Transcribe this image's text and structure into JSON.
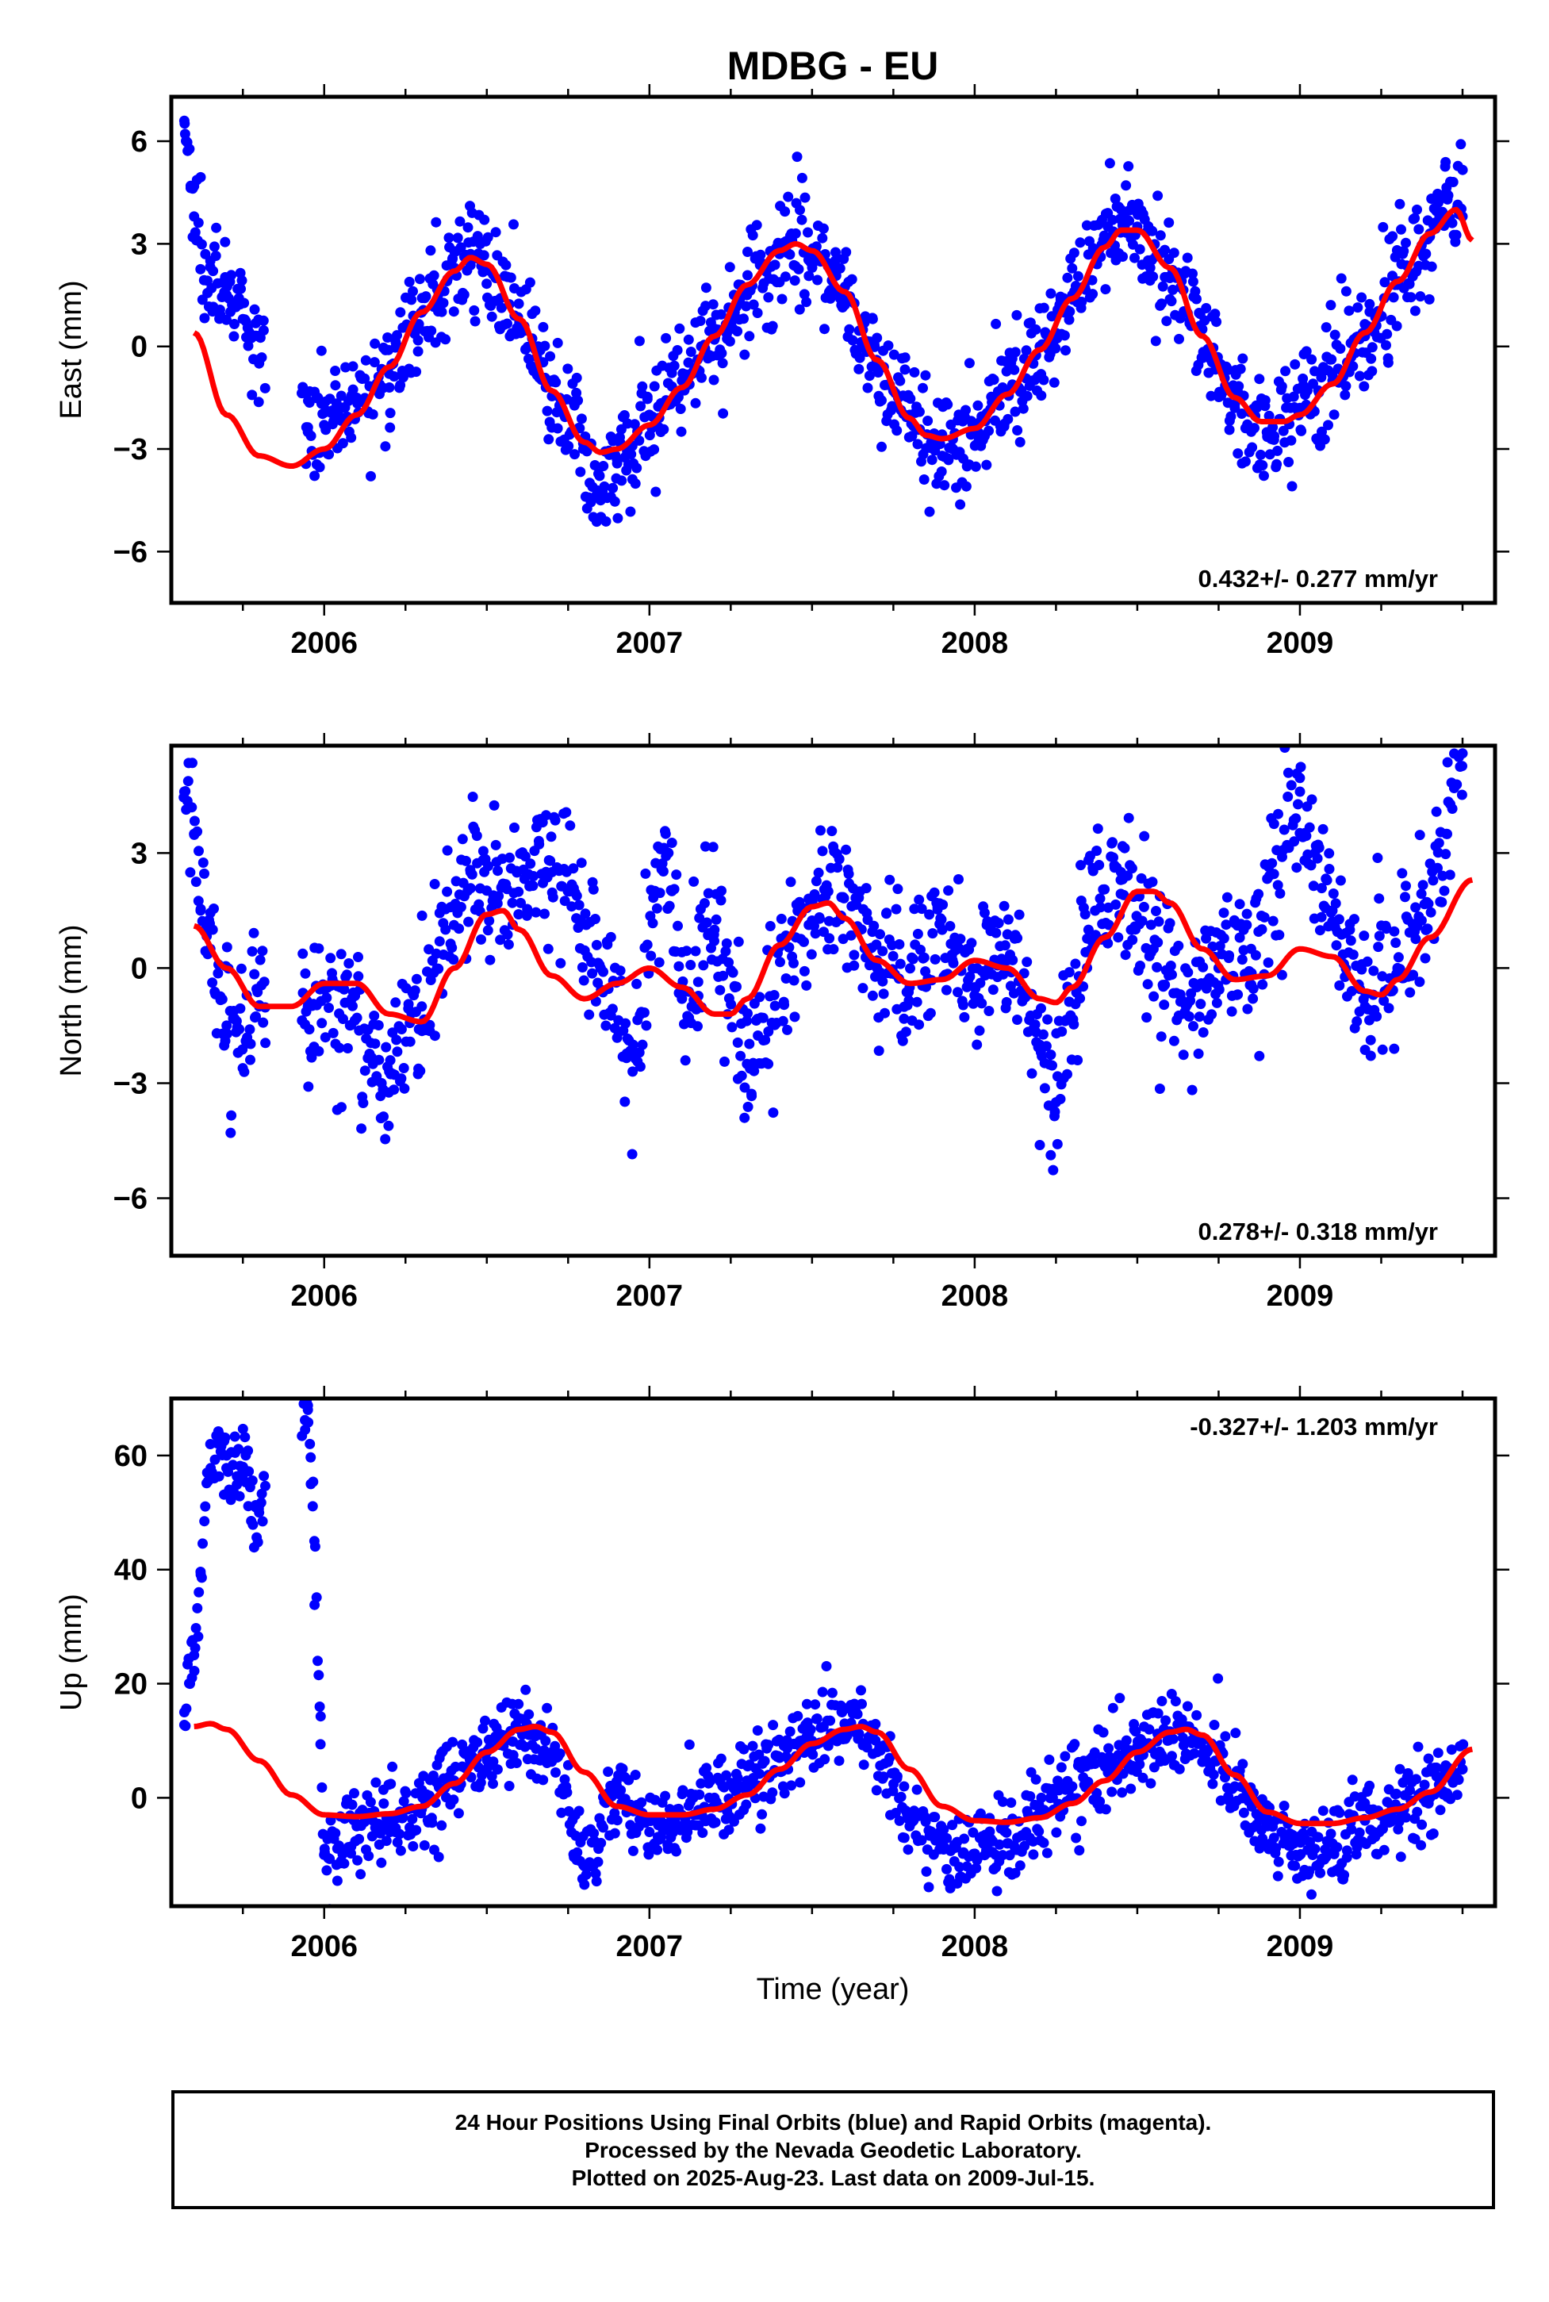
{
  "figure_title": "MDBG - EU",
  "x_axis_label": "Time (year)",
  "footer": {
    "line1": "24 Hour Positions Using Final Orbits (blue) and Rapid Orbits (magenta).",
    "line2": "Processed by the Nevada Geodetic Laboratory.",
    "line3": "Plotted on 2025-Aug-23. Last data on 2009-Jul-15."
  },
  "colors": {
    "points": "#0000ff",
    "model": "#ff0000",
    "axes": "#000000"
  },
  "chart_data": [
    {
      "type": "scatter",
      "component": "East",
      "ylabel": "East (mm)",
      "xlim": [
        2005.53,
        2009.6
      ],
      "ylim": [
        -7.5,
        7.3
      ],
      "x_ticks": [
        2006,
        2007,
        2008,
        2009
      ],
      "y_ticks": [
        -6,
        -3,
        0,
        3,
        6
      ],
      "annotation": "0.432+/- 0.277 mm/yr",
      "annotation_position": "bottom-right",
      "trend_mm_per_yr": 0.432,
      "model_curve": {
        "x": [
          2005.6,
          2005.7,
          2005.8,
          2005.9,
          2006.0,
          2006.1,
          2006.2,
          2006.3,
          2006.4,
          2006.45,
          2006.5,
          2006.6,
          2006.7,
          2006.8,
          2006.85,
          2006.9,
          2007.0,
          2007.1,
          2007.2,
          2007.3,
          2007.4,
          2007.45,
          2007.5,
          2007.6,
          2007.7,
          2007.8,
          2007.85,
          2007.9,
          2008.0,
          2008.1,
          2008.2,
          2008.3,
          2008.4,
          2008.45,
          2008.5,
          2008.6,
          2008.7,
          2008.8,
          2008.88,
          2008.95,
          2009.0,
          2009.1,
          2009.2,
          2009.3,
          2009.4,
          2009.48,
          2009.53
        ],
        "y": [
          0.4,
          -2.0,
          -3.2,
          -3.5,
          -3.0,
          -2.0,
          -0.6,
          1.0,
          2.2,
          2.6,
          2.4,
          0.8,
          -1.3,
          -2.8,
          -3.1,
          -3.0,
          -2.3,
          -1.2,
          0.3,
          1.8,
          2.8,
          3.0,
          2.8,
          1.6,
          -0.4,
          -2.1,
          -2.6,
          -2.7,
          -2.4,
          -1.4,
          -0.1,
          1.4,
          2.9,
          3.4,
          3.4,
          2.3,
          0.3,
          -1.5,
          -2.2,
          -2.2,
          -2.0,
          -1.1,
          0.4,
          1.9,
          3.3,
          4.0,
          3.1
        ]
      },
      "observations": {
        "description_free_anchors": "sampled daily positions",
        "x": [
          2005.57,
          2005.6,
          2005.65,
          2005.7,
          2005.75,
          2005.8,
          2005.95,
          2006.0,
          2006.1,
          2006.2,
          2006.3,
          2006.4,
          2006.45,
          2006.5,
          2006.6,
          2006.7,
          2006.8,
          2006.85,
          2006.9,
          2007.0,
          2007.1,
          2007.2,
          2007.3,
          2007.4,
          2007.45,
          2007.5,
          2007.6,
          2007.7,
          2007.8,
          2007.9,
          2008.0,
          2008.1,
          2008.2,
          2008.3,
          2008.4,
          2008.45,
          2008.5,
          2008.6,
          2008.7,
          2008.8,
          2008.9,
          2009.0,
          2009.1,
          2009.2,
          2009.3,
          2009.4,
          2009.45,
          2009.5
        ],
        "y": [
          6.6,
          3.8,
          2.5,
          1.5,
          0.8,
          -0.5,
          -2.5,
          -2.3,
          -1.5,
          -0.8,
          1.0,
          2.3,
          2.7,
          2.3,
          0.7,
          -1.0,
          -3.0,
          -4.5,
          -3.3,
          -2.0,
          -1.0,
          0.2,
          1.5,
          2.7,
          3.3,
          2.8,
          1.4,
          -0.5,
          -2.0,
          -3.2,
          -2.5,
          -1.3,
          0.0,
          1.5,
          3.0,
          4.0,
          3.5,
          2.0,
          0.5,
          -1.8,
          -2.6,
          -1.8,
          -1.0,
          0.3,
          1.8,
          3.3,
          4.5,
          3.8
        ]
      }
    },
    {
      "type": "scatter",
      "component": "North",
      "ylabel": "North (mm)",
      "xlim": [
        2005.53,
        2009.6
      ],
      "ylim": [
        -7.5,
        5.8
      ],
      "x_ticks": [
        2006,
        2007,
        2008,
        2009
      ],
      "y_ticks": [
        -6,
        -3,
        0,
        3
      ],
      "annotation": "0.278+/- 0.318 mm/yr",
      "annotation_position": "bottom-right",
      "trend_mm_per_yr": 0.278,
      "model_curve": {
        "x": [
          2005.6,
          2005.7,
          2005.8,
          2005.9,
          2006.0,
          2006.1,
          2006.2,
          2006.3,
          2006.4,
          2006.5,
          2006.55,
          2006.6,
          2006.7,
          2006.8,
          2006.9,
          2007.0,
          2007.1,
          2007.2,
          2007.25,
          2007.3,
          2007.4,
          2007.5,
          2007.55,
          2007.6,
          2007.7,
          2007.8,
          2007.9,
          2008.0,
          2008.1,
          2008.2,
          2008.25,
          2008.3,
          2008.4,
          2008.5,
          2008.55,
          2008.6,
          2008.7,
          2008.8,
          2008.9,
          2009.0,
          2009.1,
          2009.2,
          2009.25,
          2009.3,
          2009.4,
          2009.53
        ],
        "y": [
          1.1,
          0.0,
          -1.0,
          -1.0,
          -0.4,
          -0.4,
          -1.2,
          -1.4,
          0.0,
          1.4,
          1.5,
          1.0,
          -0.2,
          -0.8,
          -0.4,
          0.0,
          -0.5,
          -1.2,
          -1.2,
          -0.8,
          0.6,
          1.6,
          1.7,
          1.3,
          0.2,
          -0.4,
          -0.3,
          0.2,
          0.0,
          -0.8,
          -0.9,
          -0.5,
          0.8,
          2.0,
          2.0,
          1.7,
          0.5,
          -0.3,
          -0.2,
          0.5,
          0.3,
          -0.6,
          -0.7,
          -0.3,
          0.8,
          2.3
        ]
      },
      "observations": {
        "x": [
          2005.57,
          2005.6,
          2005.65,
          2005.7,
          2005.8,
          2005.95,
          2006.05,
          2006.15,
          2006.2,
          2006.3,
          2006.45,
          2006.55,
          2006.7,
          2006.75,
          2006.85,
          2006.95,
          2007.05,
          2007.1,
          2007.2,
          2007.3,
          2007.45,
          2007.55,
          2007.7,
          2007.8,
          2007.9,
          2008.0,
          2008.1,
          2008.2,
          2008.25,
          2008.35,
          2008.45,
          2008.55,
          2008.65,
          2008.75,
          2008.85,
          2009.0,
          2009.1,
          2009.2,
          2009.3,
          2009.45,
          2009.5
        ],
        "y": [
          4.6,
          3.5,
          0.5,
          -1.5,
          -1.0,
          -1.0,
          -0.5,
          -2.5,
          -2.7,
          -1.0,
          2.5,
          2.2,
          2.5,
          2.0,
          0.0,
          -2.0,
          3.5,
          -0.8,
          1.0,
          -2.5,
          0.8,
          2.0,
          0.2,
          -0.5,
          1.0,
          -0.5,
          0.2,
          -2.0,
          -3.5,
          1.0,
          2.5,
          0.5,
          -1.0,
          0.0,
          0.5,
          4.6,
          1.5,
          -1.0,
          0.0,
          3.5,
          5.6
        ]
      }
    },
    {
      "type": "scatter",
      "component": "Up",
      "ylabel": "Up (mm)",
      "xlim": [
        2005.53,
        2009.6
      ],
      "ylim": [
        -19,
        70
      ],
      "x_ticks": [
        2006,
        2007,
        2008,
        2009
      ],
      "y_ticks": [
        0,
        20,
        40,
        60
      ],
      "annotation": "-0.327+/- 1.203 mm/yr",
      "annotation_position": "top-right",
      "trend_mm_per_yr": -0.327,
      "model_curve": {
        "x": [
          2005.6,
          2005.65,
          2005.7,
          2005.8,
          2005.9,
          2006.0,
          2006.1,
          2006.2,
          2006.3,
          2006.4,
          2006.5,
          2006.6,
          2006.65,
          2006.7,
          2006.8,
          2006.9,
          2007.0,
          2007.1,
          2007.2,
          2007.3,
          2007.4,
          2007.5,
          2007.6,
          2007.65,
          2007.7,
          2007.8,
          2007.9,
          2008.0,
          2008.1,
          2008.2,
          2008.3,
          2008.4,
          2008.5,
          2008.6,
          2008.65,
          2008.7,
          2008.8,
          2008.9,
          2009.0,
          2009.1,
          2009.2,
          2009.3,
          2009.4,
          2009.53
        ],
        "y": [
          12.5,
          13.0,
          12.0,
          6.5,
          0.5,
          -3.0,
          -3.3,
          -2.8,
          -1.5,
          2.5,
          8.0,
          12.0,
          12.5,
          11.5,
          4.5,
          -1.5,
          -3.0,
          -3.0,
          -2.0,
          0.5,
          5.0,
          9.5,
          12.0,
          12.5,
          11.5,
          5.0,
          -1.5,
          -4.0,
          -4.3,
          -3.5,
          -1.0,
          3.0,
          8.0,
          11.5,
          12.0,
          11.0,
          4.0,
          -2.5,
          -4.5,
          -4.5,
          -3.5,
          -2.0,
          1.0,
          8.5
        ]
      },
      "observations": {
        "x": [
          2005.57,
          2005.6,
          2005.65,
          2005.7,
          2005.75,
          2005.8,
          2005.95,
          2005.97,
          2006.0,
          2006.1,
          2006.2,
          2006.3,
          2006.4,
          2006.5,
          2006.6,
          2006.7,
          2006.8,
          2006.9,
          2007.0,
          2007.1,
          2007.2,
          2007.3,
          2007.4,
          2007.5,
          2007.6,
          2007.7,
          2007.8,
          2007.9,
          2008.0,
          2008.1,
          2008.2,
          2008.3,
          2008.4,
          2008.5,
          2008.6,
          2008.7,
          2008.8,
          2008.9,
          2009.0,
          2009.1,
          2009.2,
          2009.3,
          2009.4,
          2009.5
        ],
        "y": [
          15.0,
          25.0,
          62.0,
          60.0,
          56.0,
          50.0,
          68.0,
          45.0,
          -10.0,
          -5.0,
          -4.0,
          -2.0,
          3.0,
          8.0,
          12.0,
          8.0,
          -12.0,
          2.0,
          -6.0,
          -3.0,
          0.0,
          3.0,
          7.0,
          10.0,
          13.0,
          8.0,
          -5.0,
          -8.0,
          -10.0,
          -8.0,
          -2.0,
          2.0,
          6.0,
          9.0,
          11.0,
          10.0,
          2.0,
          -5.0,
          -10.0,
          -8.0,
          -4.0,
          -2.0,
          0.0,
          5.0
        ]
      }
    }
  ]
}
